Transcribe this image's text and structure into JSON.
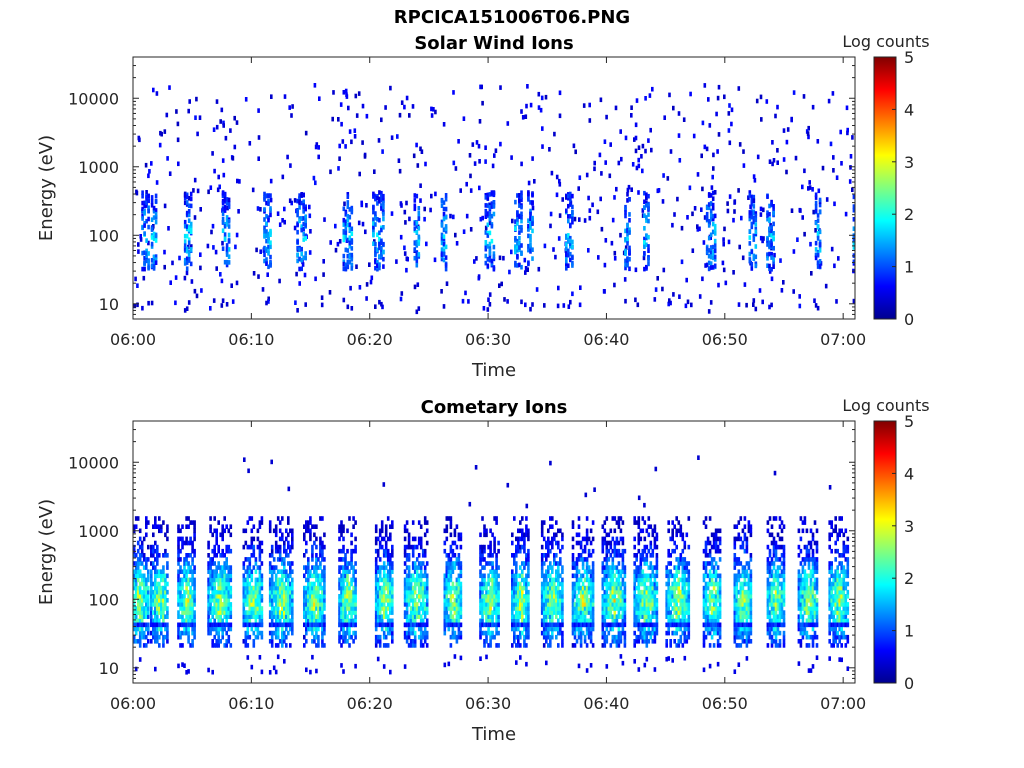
{
  "figure": {
    "title": "RPCICA151006T06.PNG"
  },
  "chart_data": [
    {
      "type": "heatmap",
      "title": "Solar Wind Ions",
      "xlabel": "Time",
      "ylabel": "Energy (eV)",
      "y_scale": "log",
      "xlim": [
        "06:00",
        "07:01"
      ],
      "ylim": [
        6,
        40000
      ],
      "x_tick_labels": [
        "06:00",
        "06:10",
        "06:20",
        "06:30",
        "06:40",
        "06:50",
        "07:00"
      ],
      "y_tick_labels": [
        "10",
        "100",
        "1000",
        "10000"
      ],
      "y_ticks": [
        10,
        100,
        1000,
        10000
      ],
      "colorbar": {
        "label": "Log counts",
        "range": [
          0,
          5
        ],
        "ticks": [
          "0",
          "1",
          "2",
          "3",
          "4",
          "5"
        ],
        "colormap": "jet"
      },
      "grid": false,
      "bursts_minutes": [
        0.7,
        1.5,
        4.3,
        7.5,
        11.0,
        13.8,
        17.7,
        20.2,
        23.7,
        26.0,
        29.7,
        32.2,
        33.3,
        36.5,
        41.5,
        43.1,
        48.4,
        52.0,
        53.5,
        57.6,
        60.8
      ],
      "burst_energy_range_eV": [
        30,
        400
      ],
      "peak_log_counts": 2.0,
      "background": "sparse single counts from 10 eV to 15000 eV"
    },
    {
      "type": "heatmap",
      "title": "Cometary Ions",
      "xlabel": "Time",
      "ylabel": "Energy (eV)",
      "y_scale": "log",
      "xlim": [
        "06:00",
        "07:01"
      ],
      "ylim": [
        6,
        40000
      ],
      "x_tick_labels": [
        "06:00",
        "06:10",
        "06:20",
        "06:30",
        "06:40",
        "06:50",
        "07:00"
      ],
      "y_tick_labels": [
        "10",
        "100",
        "1000",
        "10000"
      ],
      "y_ticks": [
        10,
        100,
        1000,
        10000
      ],
      "colorbar": {
        "label": "Log counts",
        "range": [
          0,
          5
        ],
        "ticks": [
          "0",
          "1",
          "2",
          "3",
          "4",
          "5"
        ],
        "colormap": "jet"
      },
      "grid": false,
      "bursts_minutes": [
        0.5,
        2.2,
        4.5,
        7.3,
        10.1,
        12.5,
        15.3,
        18.1,
        21.2,
        23.9,
        27.0,
        30.1,
        32.7,
        35.4,
        38.0,
        40.6,
        43.3,
        46.0,
        48.9,
        51.5,
        54.3,
        57.0,
        59.6
      ],
      "burst_energy_range_eV": [
        20,
        1500
      ],
      "peak_energy_eV": 90,
      "peak_log_counts": 3.0
    }
  ]
}
